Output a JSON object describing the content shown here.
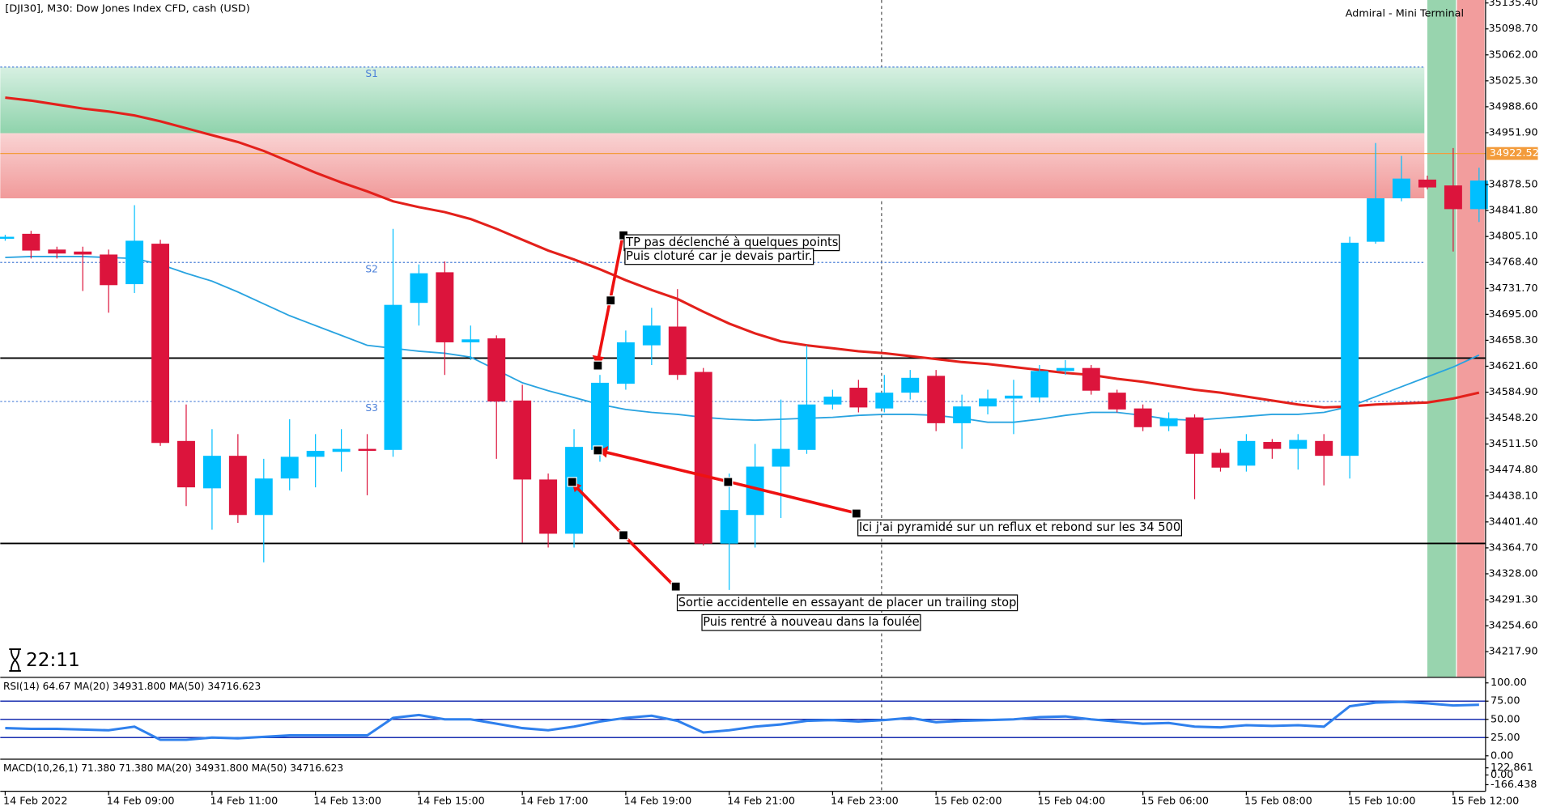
{
  "header": {
    "symbol": "[DJI30], M30:  Dow Jones Index CFD, cash (USD)",
    "terminal": "Admiral - Mini Terminal",
    "timer": "22:11"
  },
  "chart_data": {
    "type": "candlestick",
    "up_color": "#00bfff",
    "down_color": "#dc143c",
    "categories": [
      "14 Feb 2022",
      null,
      null,
      null,
      "14 Feb 09:00",
      null,
      null,
      null,
      "14 Feb 11:00",
      null,
      null,
      null,
      "14 Feb 13:00",
      null,
      null,
      null,
      "14 Feb 15:00",
      null,
      null,
      null,
      "14 Feb 17:00",
      null,
      null,
      null,
      "14 Feb 19:00",
      null,
      null,
      null,
      "14 Feb 21:00",
      null,
      null,
      null,
      "14 Feb 23:00",
      null,
      null,
      null,
      "15 Feb 02:00",
      null,
      null,
      null,
      "15 Feb 04:00",
      null,
      null,
      null,
      "15 Feb 06:00",
      null,
      null,
      null,
      "15 Feb 08:00",
      null,
      null,
      null,
      "15 Feb 10:00",
      null,
      null,
      null,
      "15 Feb 12:00",
      null
    ],
    "open": [
      34801.9,
      34808.9,
      34786.6,
      34783.8,
      34779.6,
      34737.7,
      34794.9,
      34515.9,
      34448.9,
      34494.9,
      34411.2,
      34462.8,
      34493.5,
      34500.5,
      34504.7,
      34503.3,
      34711.2,
      34754.5,
      34655.4,
      34661.0,
      34573.1,
      34461.4,
      34384.7,
      34503.3,
      34596.8,
      34651.2,
      34677.7,
      34613.5,
      34370.7,
      34411.2,
      34479.6,
      34503.3,
      34567.5,
      34591.2,
      34561.9,
      34584.2,
      34608.0,
      34541.0,
      34564.7,
      34575.9,
      34577.3,
      34614.9,
      34619.1,
      34584.2,
      34561.9,
      34536.8,
      34549.3,
      34499.1,
      34481.0,
      34514.5,
      34504.7,
      34515.9,
      34494.9,
      34797.7,
      34859.1,
      34885.6,
      34877.3,
      34843.8
    ],
    "high": [
      34807.5,
      34813.1,
      34790.7,
      34790.7,
      34786.6,
      34849.4,
      34800.5,
      34567.5,
      34532.6,
      34525.6,
      34490.7,
      34546.6,
      34525.6,
      34532.6,
      34525.6,
      34815.9,
      34765.6,
      34769.8,
      34679.1,
      34665.2,
      34595.4,
      34469.8,
      34532.6,
      34609.3,
      34672.1,
      34704.2,
      34730.7,
      34619.1,
      34469.8,
      34511.7,
      34574.5,
      34651.2,
      34588.4,
      34602.4,
      34609.3,
      34616.3,
      34616.3,
      34581.4,
      34588.4,
      34602.4,
      34623.3,
      34630.3,
      34623.3,
      34588.4,
      34567.5,
      34556.3,
      34553.5,
      34504.7,
      34525.6,
      34518.6,
      34525.6,
      34525.6,
      34804.7,
      34937.3,
      34919.1,
      34891.2,
      34930.3,
      34902.4
    ],
    "low": [
      34799.1,
      34774.0,
      34774.0,
      34728.0,
      34697.3,
      34725.2,
      34508.9,
      34423.8,
      34390.3,
      34400.0,
      34344.2,
      34446.1,
      34450.3,
      34472.6,
      34439.1,
      34493.5,
      34679.1,
      34609.3,
      34630.3,
      34490.7,
      34372.1,
      34365.2,
      34365.2,
      34486.5,
      34588.4,
      34623.3,
      34602.4,
      34368.0,
      34305.2,
      34365.2,
      34407.0,
      34497.7,
      34560.5,
      34556.3,
      34556.3,
      34574.5,
      34529.8,
      34504.7,
      34553.5,
      34525.6,
      34570.3,
      34609.3,
      34581.4,
      34556.3,
      34529.8,
      34529.8,
      34433.5,
      34472.6,
      34472.6,
      34490.7,
      34475.4,
      34453.1,
      34462.8,
      34794.9,
      34854.9,
      34871.7,
      34783.8,
      34825.6
    ],
    "close": [
      34804.7,
      34785.2,
      34781.0,
      34779.6,
      34736.3,
      34799.1,
      34513.1,
      34450.3,
      34494.9,
      34411.2,
      34462.8,
      34493.5,
      34501.9,
      34504.7,
      34501.9,
      34708.4,
      34753.1,
      34655.4,
      34659.6,
      34571.7,
      34461.4,
      34384.7,
      34507.5,
      34598.2,
      34655.4,
      34679.1,
      34609.3,
      34370.7,
      34418.2,
      34479.6,
      34504.7,
      34567.5,
      34578.6,
      34563.3,
      34584.2,
      34605.2,
      34541.0,
      34564.7,
      34575.9,
      34580.0,
      34614.9,
      34619.1,
      34587.0,
      34560.5,
      34535.4,
      34548.0,
      34497.7,
      34478.2,
      34515.9,
      34504.7,
      34517.3,
      34494.9,
      34796.3,
      34859.1,
      34887.0,
      34874.5,
      34843.8,
      34884.2
    ],
    "moving_averages": [
      {
        "color": "#e3201b",
        "values": [
          35001.5,
          34997.3,
          34991.7,
          34986.1,
          34981.9,
          34976.3,
          34968.0,
          34958.2,
          34948.4,
          34938.7,
          34926.1,
          34910.8,
          34895.4,
          34881.5,
          34868.9,
          34854.9,
          34846.6,
          34839.6,
          34829.8,
          34815.9,
          34800.5,
          34785.2,
          34772.6,
          34758.7,
          34743.3,
          34729.4,
          34716.8,
          34698.7,
          34681.9,
          34668.0,
          34656.8,
          34651.2,
          34647.0,
          34642.8,
          34640.0,
          34635.9,
          34631.7,
          34627.5,
          34624.7,
          34620.5,
          34616.3,
          34612.1,
          34609.3,
          34603.8,
          34599.6,
          34594.0,
          34588.4,
          34584.2,
          34578.6,
          34573.1,
          34567.5,
          34563.3,
          34564.7,
          34567.5,
          34568.9,
          34570.3,
          34575.9,
          34584.2
        ]
      },
      {
        "color": "#29a3e0",
        "values": [
          34775.4,
          34776.8,
          34776.8,
          34776.8,
          34775.4,
          34774.0,
          34765.6,
          34753.1,
          34741.9,
          34726.6,
          34709.8,
          34693.1,
          34679.1,
          34665.2,
          34651.2,
          34647.0,
          34642.8,
          34640.0,
          34634.5,
          34616.3,
          34598.2,
          34587.0,
          34577.3,
          34567.5,
          34560.5,
          34556.3,
          34553.5,
          34549.3,
          34546.6,
          34545.2,
          34546.6,
          34548.0,
          34549.3,
          34552.1,
          34553.5,
          34553.5,
          34552.1,
          34548.0,
          34542.4,
          34542.4,
          34546.6,
          34552.1,
          34556.3,
          34556.3,
          34552.1,
          34546.6,
          34545.2,
          34548.0,
          34550.7,
          34553.5,
          34553.5,
          34556.3,
          34564.7,
          34578.6,
          34592.6,
          34606.6,
          34620.5,
          34637.3
        ]
      }
    ],
    "ylim": [
      34182.3,
      35139.6
    ],
    "yticks": [
      {
        "value": 35135.4,
        "label": "35135.40"
      },
      {
        "value": 35098.7,
        "label": "35098.70"
      },
      {
        "value": 35062,
        "label": "35062.00"
      },
      {
        "value": 35025.3,
        "label": "35025.30"
      },
      {
        "value": 34988.6,
        "label": "34988.60"
      },
      {
        "value": 34951.9,
        "label": "34951.90"
      },
      {
        "value": 34878.5,
        "label": "34878.50"
      },
      {
        "value": 34841.8,
        "label": "34841.80"
      },
      {
        "value": 34805.1,
        "label": "34805.10"
      },
      {
        "value": 34768.4,
        "label": "34768.40"
      },
      {
        "value": 34731.7,
        "label": "34731.70"
      },
      {
        "value": 34695,
        "label": "34695.00"
      },
      {
        "value": 34658.3,
        "label": "34658.30"
      },
      {
        "value": 34621.6,
        "label": "34621.60"
      },
      {
        "value": 34584.9,
        "label": "34584.90"
      },
      {
        "value": 34548.2,
        "label": "34548.20"
      },
      {
        "value": 34511.5,
        "label": "34511.50"
      },
      {
        "value": 34474.8,
        "label": "34474.80"
      },
      {
        "value": 34438.1,
        "label": "34438.10"
      },
      {
        "value": 34401.4,
        "label": "34401.40"
      },
      {
        "value": 34364.7,
        "label": "34364.70"
      },
      {
        "value": 34328,
        "label": "34328.00"
      },
      {
        "value": 34291.3,
        "label": "34291.30"
      },
      {
        "value": 34254.6,
        "label": "34254.60"
      },
      {
        "value": 34217.9,
        "label": "34217.90"
      }
    ],
    "current_price": {
      "value": 34922.52,
      "label": "34922.52"
    },
    "zones": [
      {
        "from": 35044.7,
        "to": 34951.2
      },
      {
        "from": 34951.2,
        "to": 34859.1
      }
    ],
    "levels": [
      {
        "label": "S1",
        "value": 35044.7
      },
      {
        "label": "S2",
        "value": 34768.4
      },
      {
        "label": "S3",
        "value": 34571.7
      }
    ],
    "lines": [
      34633.1,
      34370.9
    ],
    "annotations": [
      {
        "lines": [
          "TP pas déclenché à quelques points",
          "Puis cloturé car je devais partir."
        ]
      },
      {
        "lines": [
          "Ici j'ai pyramidé sur un reflux et rebond sur les 34 500"
        ]
      },
      {
        "lines": [
          "Sortie accidentelle en essayant de placer un trailing stop",
          "Puis rentré à nouveau dans la foulée"
        ]
      }
    ],
    "panels": [
      {
        "label": "RSI(14) 64.67 MA(20) 34931.800 MA(50) 34716.623",
        "ylim": [
          -4,
          107
        ],
        "yticks": [
          {
            "value": 100,
            "label": "100.00"
          },
          {
            "value": 75,
            "label": "75.00"
          },
          {
            "value": 50,
            "label": "50.00"
          },
          {
            "value": 25,
            "label": "25.00"
          },
          {
            "value": 0,
            "label": "0.00"
          }
        ],
        "levels": [
          75,
          50,
          25
        ],
        "color": "#2f80ed",
        "values": [
          38,
          37,
          37,
          36,
          35,
          40,
          22,
          22,
          25,
          24,
          26,
          28,
          28,
          28,
          28,
          52,
          56,
          50,
          50,
          44,
          38,
          35,
          40,
          47,
          52,
          55,
          48,
          32,
          35,
          40,
          43,
          48,
          49,
          47,
          49,
          52,
          46,
          48,
          49,
          50,
          53,
          54,
          50,
          47,
          44,
          45,
          40,
          39,
          42,
          41,
          42,
          40,
          68,
          73,
          74,
          72,
          69,
          70
        ]
      },
      {
        "label": "MACD(10,26,1) 71.380 71.380 MA(20) 34931.800 MA(50) 34716.623",
        "ylim": [
          -263,
          263
        ],
        "yticks": [
          122.861,
          {
            "value": 0,
            "label": "0.00"
          },
          -166.438
        ]
      }
    ]
  }
}
